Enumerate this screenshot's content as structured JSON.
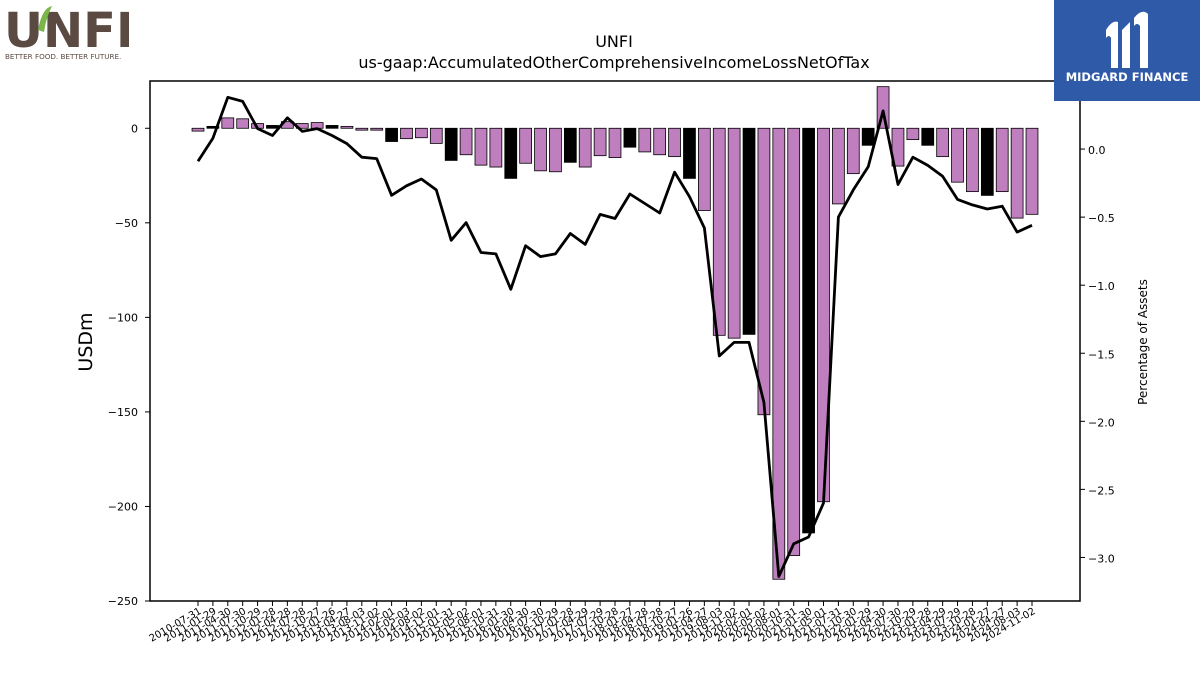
{
  "logos": {
    "left": {
      "text": "UNFI",
      "tagline": "BETTER FOOD. BETTER FUTURE.",
      "tm": "™"
    },
    "right": {
      "text": "MIDGARD FINANCE",
      "accent": "#2f5aa8"
    }
  },
  "colors": {
    "bar_primary": "#bf7fbf",
    "bar_highlight": "#000000",
    "line": "#000000"
  },
  "chart_data": {
    "type": "bar",
    "title": "UNFI",
    "subtitle": "us-gaap:AccumulatedOtherComprehensiveIncomeLossNetOfTax",
    "ylabel": "USDm",
    "y2label": "Percentage of Assets",
    "ylim": [
      -250,
      25
    ],
    "y2lim": [
      -3.32,
      0.5
    ],
    "yticks": [
      0,
      -50,
      -100,
      -150,
      -200,
      -250
    ],
    "y2ticks": [
      0.0,
      -0.5,
      -1.0,
      -1.5,
      -2.0,
      -2.5,
      -3.0
    ],
    "y2tick_labels": [
      "0.0",
      "−0.5",
      "−1.0",
      "−1.5",
      "−2.0",
      "−2.5",
      "−3.0"
    ],
    "ytick_labels": [
      "0",
      "−50",
      "−100",
      "−150",
      "−200",
      "−250"
    ],
    "categories": [
      "2010-07-31",
      "2011-01-29",
      "2011-04-30",
      "2011-07-30",
      "2011-10-29",
      "2012-01-28",
      "2012-04-28",
      "2012-07-28",
      "2012-10-27",
      "2013-01-26",
      "2013-04-27",
      "2013-08-03",
      "2013-11-02",
      "2014-02-01",
      "2014-05-03",
      "2014-08-02",
      "2014-11-01",
      "2015-01-31",
      "2015-05-02",
      "2015-08-01",
      "2015-10-31",
      "2016-01-30",
      "2016-04-30",
      "2016-07-30",
      "2016-10-29",
      "2017-01-28",
      "2017-04-29",
      "2017-07-29",
      "2017-10-28",
      "2018-01-27",
      "2018-04-28",
      "2018-07-28",
      "2018-10-27",
      "2019-01-26",
      "2019-04-27",
      "2019-08-03",
      "2019-11-02",
      "2020-02-01",
      "2020-05-02",
      "2020-08-01",
      "2020-10-31",
      "2021-01-30",
      "2021-05-01",
      "2021-07-31",
      "2021-10-30",
      "2022-01-29",
      "2022-04-30",
      "2022-07-30",
      "2022-10-29",
      "2023-01-28",
      "2023-04-29",
      "2023-07-29",
      "2023-10-28",
      "2024-01-27",
      "2024-04-27",
      "2024-08-03",
      "2024-11-02"
    ],
    "xtick_labels": [
      "2010-07-31",
      "2011-01-29",
      "2011-04-30",
      "2011-07-30",
      "2011-10-29",
      "2012-01-28",
      "2012-04-28",
      "2012-07-28",
      "2012-10-27",
      "2013-01-26",
      "2013-04-27",
      "2013-08-03",
      "2013-11-02",
      "2014-02-01",
      "2014-05-03",
      "2014-08-02",
      "2014-11-01",
      "2015-01-31",
      "2015-05-02",
      "2015-08-01",
      "2015-10-31",
      "2016-01-30",
      "2016-04-30",
      "2016-07-30",
      "2016-10-29",
      "2017-01-28",
      "2017-04-29",
      "2017-07-29",
      "2017-10-28",
      "2018-01-27",
      "2018-04-28",
      "2018-07-28",
      "2018-10-27",
      "2019-01-26",
      "2019-04-27",
      "2019-08-03",
      "2019-11-02",
      "2020-02-01",
      "2020-05-02",
      "2020-08-01",
      "2020-10-31",
      "2021-01-30",
      "2021-05-01",
      "2021-07-31",
      "2021-10-30",
      "2022-01-29",
      "2022-04-30",
      "2022-07-30",
      "2022-10-29",
      "2023-01-28",
      "2023-04-29",
      "2023-07-29",
      "2023-10-28",
      "2024-01-27",
      "2024-04-27",
      "2024-08-03",
      "2024-11-02"
    ],
    "series": [
      {
        "values": [
          -1.5,
          1,
          5.5,
          5,
          2.5,
          1.5,
          3.5,
          2.5,
          3,
          1.5,
          1,
          -1,
          -1,
          -7,
          -5.5,
          -5,
          -8,
          -17,
          -14,
          -19.5,
          -20.5,
          -26.5,
          -18.5,
          -22.5,
          -23,
          -18,
          -20.5,
          -14.5,
          -15.5,
          -10,
          -12.5,
          -14,
          -15,
          -26.5,
          -43.5,
          -109.5,
          -111,
          -109,
          -151.5,
          -238.5,
          -226,
          -214,
          -197.5,
          -40,
          -24,
          -9,
          22,
          -20,
          -6,
          -9,
          -15,
          -28.5,
          -33.5,
          -35.5,
          -33.5,
          -47.5,
          -45.5
        ],
        "highlight": [
          false,
          true,
          false,
          false,
          false,
          true,
          false,
          false,
          false,
          true,
          false,
          false,
          false,
          true,
          false,
          false,
          false,
          true,
          false,
          false,
          false,
          true,
          false,
          false,
          false,
          true,
          false,
          false,
          false,
          true,
          false,
          false,
          false,
          true,
          false,
          false,
          false,
          true,
          false,
          false,
          false,
          true,
          false,
          false,
          false,
          true,
          false,
          false,
          false,
          true,
          false,
          false,
          false,
          true,
          false,
          false,
          false
        ]
      },
      {
        "values": [
          -0.09,
          0.08,
          0.38,
          0.35,
          0.15,
          0.1,
          0.23,
          0.13,
          0.15,
          0.1,
          0.04,
          -0.06,
          -0.07,
          -0.34,
          -0.27,
          -0.22,
          -0.3,
          -0.67,
          -0.54,
          -0.76,
          -0.77,
          -1.03,
          -0.71,
          -0.79,
          -0.77,
          -0.62,
          -0.7,
          -0.48,
          -0.51,
          -0.33,
          -0.4,
          -0.47,
          -0.17,
          -0.35,
          -0.58,
          -1.52,
          -1.42,
          -1.42,
          -1.86,
          -3.14,
          -2.9,
          -2.85,
          -2.6,
          -0.5,
          -0.3,
          -0.13,
          0.28,
          -0.26,
          -0.06,
          -0.12,
          -0.2,
          -0.37,
          -0.41,
          -0.44,
          -0.42,
          -0.61,
          -0.56
        ]
      }
    ]
  }
}
